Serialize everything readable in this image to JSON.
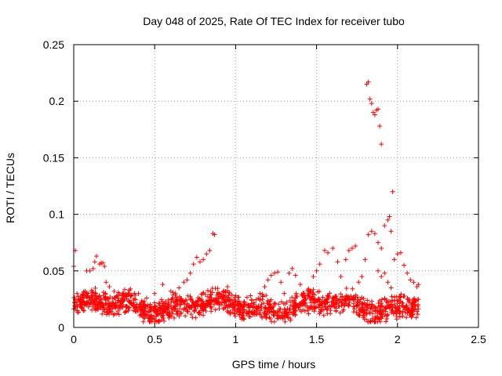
{
  "chart_data": {
    "type": "scatter",
    "title": "Day 048 of 2025, Rate Of TEC Index for receiver tubo",
    "xlabel": "GPS time / hours",
    "ylabel": "ROTI / TECUs",
    "xlim": [
      0,
      2.5
    ],
    "ylim": [
      0,
      0.25
    ],
    "xticks": [
      0,
      0.5,
      1,
      1.5,
      2,
      2.5
    ],
    "xtick_labels": [
      "0",
      "0.5",
      "1",
      "1.5",
      "2",
      "2.5"
    ],
    "yticks": [
      0,
      0.05,
      0.1,
      0.15,
      0.2,
      0.25
    ],
    "ytick_labels": [
      "0",
      "0.05",
      "0.1",
      "0.15",
      "0.2",
      "0.25"
    ],
    "grid": true,
    "marker": "+",
    "color": "#ff0000",
    "series": [
      {
        "name": "ROTI",
        "points": [
          [
            0.0,
            0.054
          ],
          [
            0.01,
            0.068
          ],
          [
            0.02,
            0.03
          ],
          [
            0.03,
            0.025
          ],
          [
            0.05,
            0.022
          ],
          [
            0.07,
            0.032
          ],
          [
            0.08,
            0.05
          ],
          [
            0.1,
            0.05
          ],
          [
            0.12,
            0.052
          ],
          [
            0.13,
            0.058
          ],
          [
            0.14,
            0.063
          ],
          [
            0.16,
            0.056
          ],
          [
            0.17,
            0.057
          ],
          [
            0.18,
            0.057
          ],
          [
            0.19,
            0.054
          ],
          [
            0.2,
            0.04
          ],
          [
            0.22,
            0.036
          ],
          [
            0.25,
            0.032
          ],
          [
            0.3,
            0.028
          ],
          [
            0.35,
            0.034
          ],
          [
            0.4,
            0.03
          ],
          [
            0.45,
            0.026
          ],
          [
            0.5,
            0.03
          ],
          [
            0.55,
            0.038
          ],
          [
            0.6,
            0.032
          ],
          [
            0.65,
            0.035
          ],
          [
            0.68,
            0.04
          ],
          [
            0.7,
            0.042
          ],
          [
            0.72,
            0.048
          ],
          [
            0.74,
            0.056
          ],
          [
            0.76,
            0.062
          ],
          [
            0.78,
            0.058
          ],
          [
            0.8,
            0.06
          ],
          [
            0.82,
            0.065
          ],
          [
            0.84,
            0.068
          ],
          [
            0.86,
            0.083
          ],
          [
            0.87,
            0.082
          ],
          [
            0.9,
            0.03
          ],
          [
            0.95,
            0.036
          ],
          [
            1.0,
            0.028
          ],
          [
            1.05,
            0.022
          ],
          [
            1.1,
            0.024
          ],
          [
            1.15,
            0.03
          ],
          [
            1.18,
            0.036
          ],
          [
            1.2,
            0.042
          ],
          [
            1.22,
            0.046
          ],
          [
            1.24,
            0.048
          ],
          [
            1.26,
            0.049
          ],
          [
            1.28,
            0.04
          ],
          [
            1.3,
            0.03
          ],
          [
            1.33,
            0.048
          ],
          [
            1.35,
            0.052
          ],
          [
            1.37,
            0.046
          ],
          [
            1.4,
            0.038
          ],
          [
            1.45,
            0.034
          ],
          [
            1.48,
            0.045
          ],
          [
            1.5,
            0.05
          ],
          [
            1.52,
            0.056
          ],
          [
            1.55,
            0.068
          ],
          [
            1.57,
            0.066
          ],
          [
            1.6,
            0.07
          ],
          [
            1.63,
            0.058
          ],
          [
            1.65,
            0.045
          ],
          [
            1.68,
            0.06
          ],
          [
            1.7,
            0.068
          ],
          [
            1.72,
            0.07
          ],
          [
            1.74,
            0.072
          ],
          [
            1.76,
            0.04
          ],
          [
            1.78,
            0.045
          ],
          [
            1.8,
            0.06
          ],
          [
            1.81,
            0.215
          ],
          [
            1.82,
            0.217
          ],
          [
            1.83,
            0.202
          ],
          [
            1.84,
            0.198
          ],
          [
            1.85,
            0.19
          ],
          [
            1.86,
            0.188
          ],
          [
            1.87,
            0.192
          ],
          [
            1.88,
            0.193
          ],
          [
            1.89,
            0.178
          ],
          [
            1.9,
            0.162
          ],
          [
            1.82,
            0.082
          ],
          [
            1.84,
            0.085
          ],
          [
            1.86,
            0.083
          ],
          [
            1.88,
            0.075
          ],
          [
            1.9,
            0.07
          ],
          [
            1.92,
            0.09
          ],
          [
            1.94,
            0.095
          ],
          [
            1.95,
            0.098
          ],
          [
            1.96,
            0.085
          ],
          [
            1.97,
            0.12
          ],
          [
            1.88,
            0.05
          ],
          [
            1.9,
            0.045
          ],
          [
            1.92,
            0.048
          ],
          [
            1.94,
            0.04
          ],
          [
            1.96,
            0.035
          ],
          [
            1.98,
            0.06
          ],
          [
            2.0,
            0.065
          ],
          [
            2.02,
            0.066
          ],
          [
            2.04,
            0.055
          ],
          [
            2.06,
            0.048
          ],
          [
            2.08,
            0.042
          ],
          [
            2.1,
            0.04
          ],
          [
            2.12,
            0.036
          ],
          [
            2.13,
            0.038
          ]
        ]
      }
    ],
    "dense_band": {
      "x_range": [
        0,
        2.13
      ],
      "y_center": 0.019,
      "y_spread": 0.012,
      "count": 1400
    }
  }
}
